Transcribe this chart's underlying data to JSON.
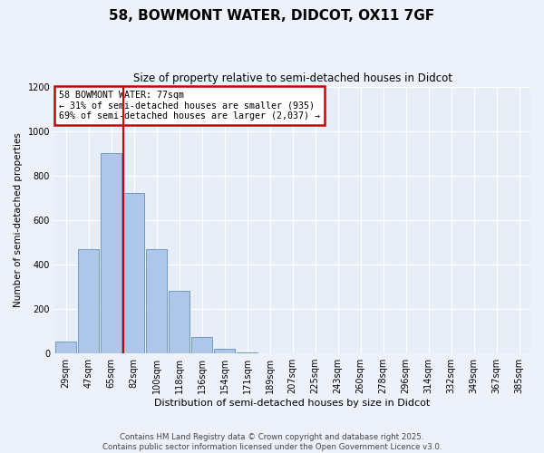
{
  "title": "58, BOWMONT WATER, DIDCOT, OX11 7GF",
  "subtitle": "Size of property relative to semi-detached houses in Didcot",
  "xlabel": "Distribution of semi-detached houses by size in Didcot",
  "ylabel": "Number of semi-detached properties",
  "categories": [
    "29sqm",
    "47sqm",
    "65sqm",
    "82sqm",
    "100sqm",
    "118sqm",
    "136sqm",
    "154sqm",
    "171sqm",
    "189sqm",
    "207sqm",
    "225sqm",
    "243sqm",
    "260sqm",
    "278sqm",
    "296sqm",
    "314sqm",
    "332sqm",
    "349sqm",
    "367sqm",
    "385sqm"
  ],
  "values": [
    55,
    470,
    900,
    720,
    470,
    280,
    75,
    20,
    5,
    2,
    0,
    0,
    0,
    0,
    0,
    0,
    0,
    0,
    0,
    0,
    0
  ],
  "bar_color": "#aec6e8",
  "bar_edge_color": "#6090bb",
  "vline_color": "#cc0000",
  "annotation_title": "58 BOWMONT WATER: 77sqm",
  "annotation_line1": "← 31% of semi-detached houses are smaller (935)",
  "annotation_line2": "69% of semi-detached houses are larger (2,037) →",
  "annotation_box_color": "#cc0000",
  "ylim": [
    0,
    1200
  ],
  "yticks": [
    0,
    200,
    400,
    600,
    800,
    1000,
    1200
  ],
  "background_color": "#e8eef8",
  "grid_color": "#ffffff",
  "footer_line1": "Contains HM Land Registry data © Crown copyright and database right 2025.",
  "footer_line2": "Contains public sector information licensed under the Open Government Licence v3.0."
}
